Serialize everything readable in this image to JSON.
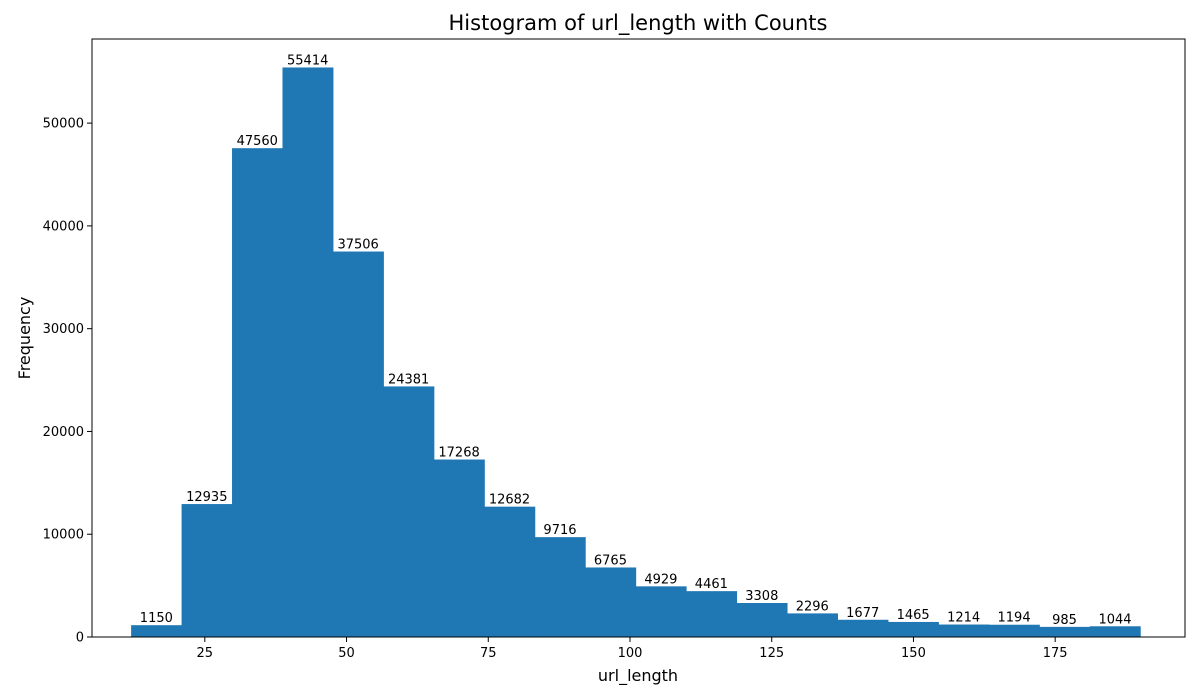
{
  "chart_data": {
    "type": "bar",
    "title": "Histogram of url_length with Counts",
    "xlabel": "url_length",
    "ylabel": "Frequency",
    "xlim": [
      5.1,
      197.9
    ],
    "ylim": [
      0,
      58185
    ],
    "xticks": [
      25,
      50,
      75,
      100,
      125,
      150,
      175
    ],
    "yticks": [
      0,
      10000,
      20000,
      30000,
      40000,
      50000
    ],
    "bin_edges": [
      12,
      20.9,
      29.8,
      38.7,
      47.6,
      56.5,
      65.4,
      74.3,
      83.2,
      92.1,
      101,
      109.9,
      118.8,
      127.7,
      136.6,
      145.5,
      154.4,
      163.3,
      172.2,
      181.1,
      190
    ],
    "values": [
      1150,
      12935,
      47560,
      55414,
      37506,
      24381,
      17268,
      12682,
      9716,
      6765,
      4929,
      4461,
      3308,
      2296,
      1677,
      1465,
      1214,
      1194,
      985,
      1044
    ],
    "color": "#1f77b4",
    "grid": false
  }
}
